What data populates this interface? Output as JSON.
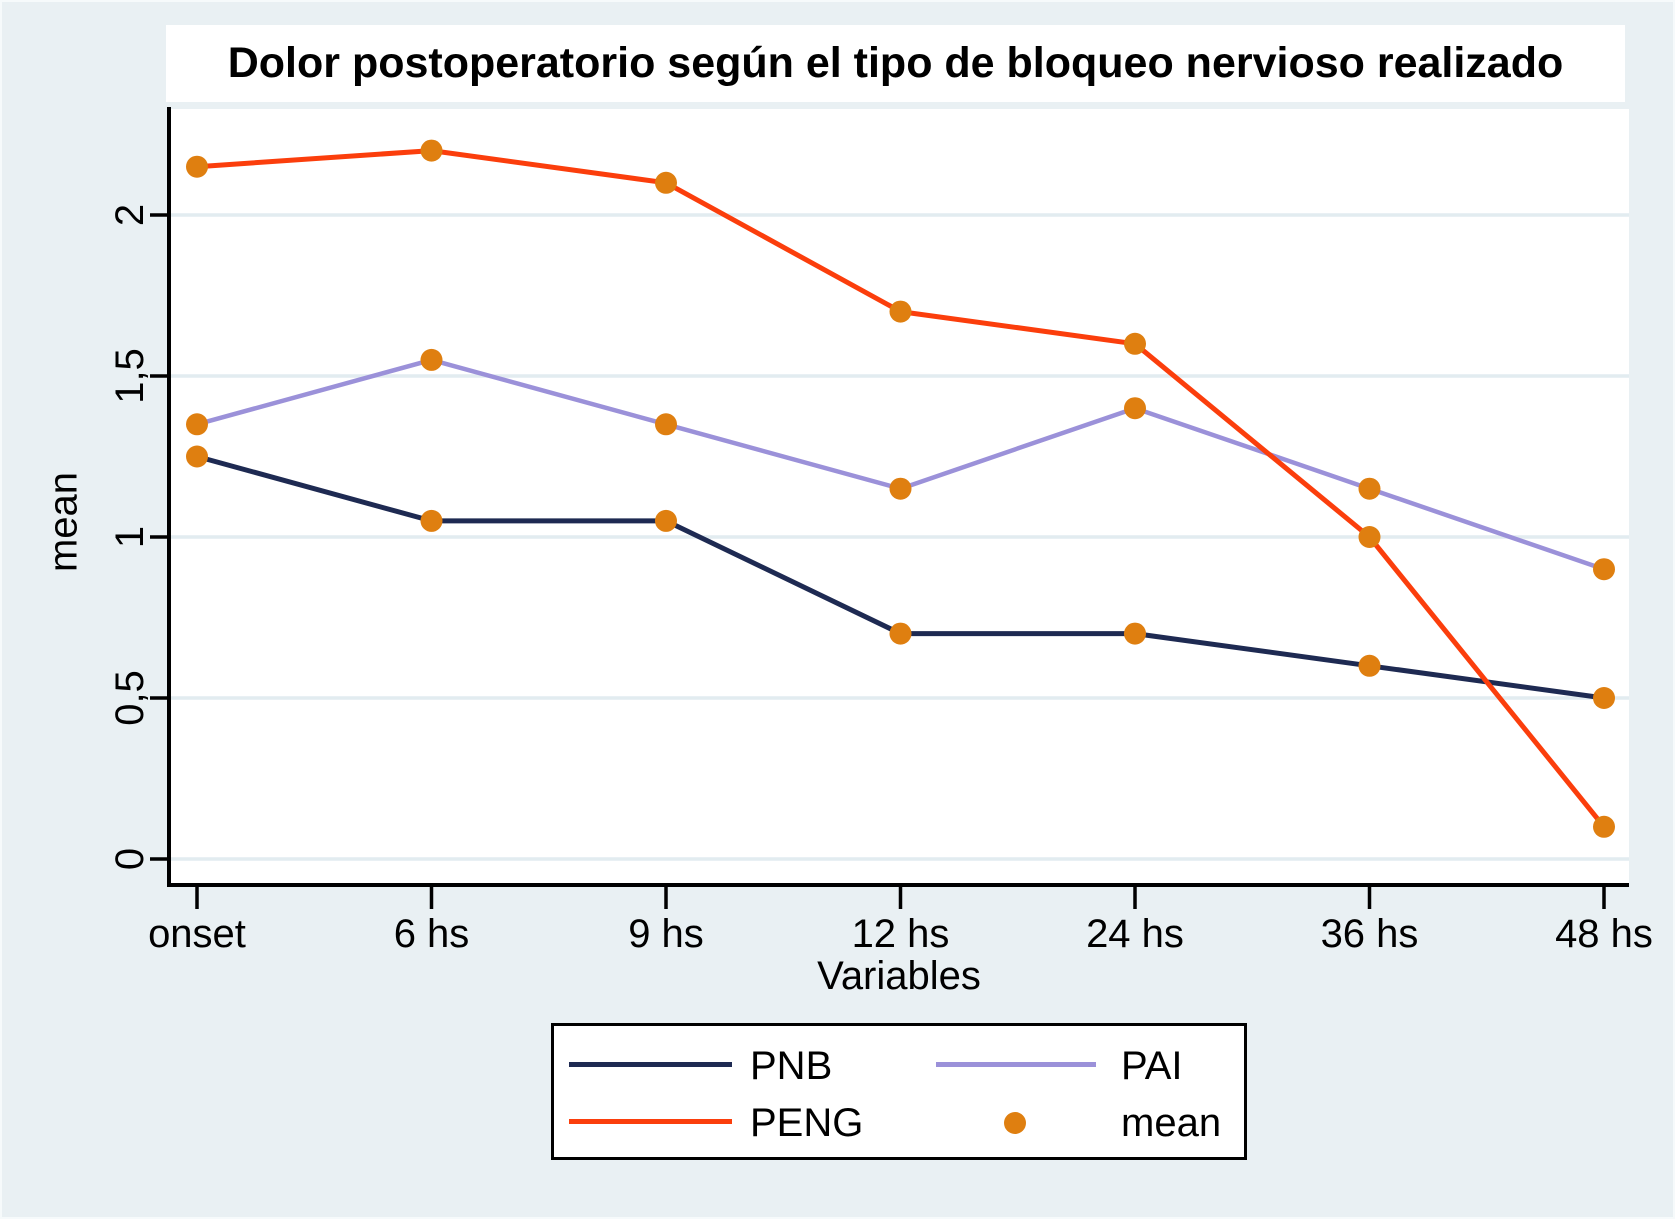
{
  "chart_data": {
    "type": "line",
    "title": "Dolor postoperatorio según el tipo de bloqueo nervioso realizado",
    "xlabel": "Variables",
    "ylabel": "mean",
    "categories": [
      "onset",
      "6 hs",
      "9 hs",
      "12 hs",
      "24 hs",
      "36 hs",
      "48 hs"
    ],
    "series": [
      {
        "name": "PAI",
        "color": "#9b91d9",
        "width": 4.5,
        "values": [
          1.35,
          1.55,
          1.35,
          1.15,
          1.4,
          1.15,
          0.9
        ]
      },
      {
        "name": "PNB",
        "color": "#1e2a52",
        "width": 5,
        "values": [
          1.25,
          1.05,
          1.05,
          0.7,
          0.7,
          0.6,
          0.5
        ]
      },
      {
        "name": "PENG",
        "color": "#fb3e0c",
        "width": 5,
        "values": [
          2.15,
          2.2,
          2.1,
          1.7,
          1.6,
          1.0,
          0.1
        ]
      }
    ],
    "marker": {
      "name": "mean",
      "color": "#df7f10",
      "radius": 11
    },
    "yticks": {
      "values": [
        0,
        0.5,
        1,
        1.5,
        2
      ],
      "labels": [
        "0",
        "0,5",
        "1",
        "1,5",
        "2"
      ]
    },
    "ylim": [
      -0.08,
      2.33
    ],
    "grid": true,
    "legend": {
      "position": "bottom",
      "entries": [
        {
          "label": "PNB",
          "swatch": "line",
          "color": "#1e2a52"
        },
        {
          "label": "PAI",
          "swatch": "line",
          "color": "#9b91d9"
        },
        {
          "label": "PENG",
          "swatch": "line",
          "color": "#fb3e0c"
        },
        {
          "label": "mean",
          "swatch": "marker",
          "color": "#df7f10"
        }
      ]
    },
    "colors": {
      "figure_background": "#e9f0f3",
      "plot_background": "#ffffff",
      "title_background": "#ffffff",
      "gridline": "#e2ecf0",
      "axis": "#000000",
      "text": "#000000"
    }
  }
}
